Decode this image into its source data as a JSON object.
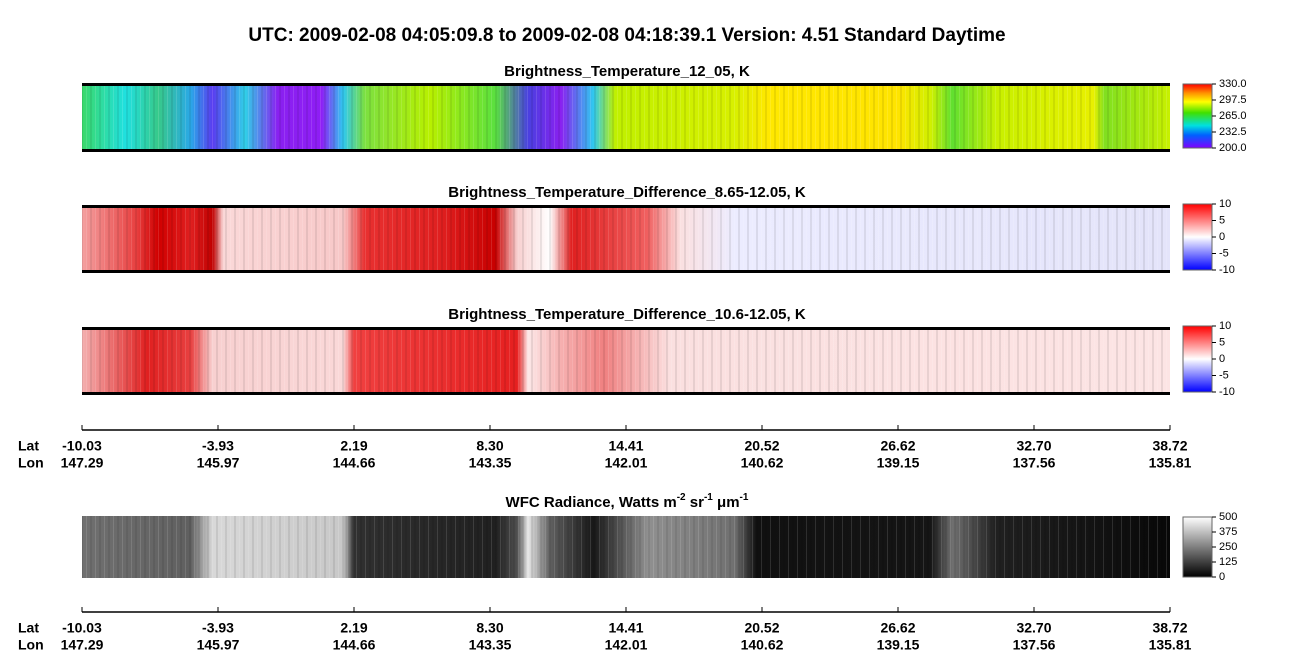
{
  "header": {
    "title": "UTC:  2009-02-08   04:05:09.8  to  2009-02-08   04:18:39.1    Version: 4.51  Standard Daytime"
  },
  "panels": [
    {
      "title": "Brightness_Temperature_12_05, K",
      "colorbar": [
        "330.0",
        "297.5",
        "265.0",
        "232.5",
        "200.0"
      ]
    },
    {
      "title": "Brightness_Temperature_Difference_8.65-12.05, K",
      "colorbar": [
        "10",
        "5",
        "0",
        "-5",
        "-10"
      ]
    },
    {
      "title": "Brightness_Temperature_Difference_10.6-12.05, K",
      "colorbar": [
        "10",
        "5",
        "0",
        "-5",
        "-10"
      ]
    },
    {
      "title_parts": [
        "WFC Radiance, Watts m",
        "-2",
        " sr",
        "-1",
        " μm",
        "-1"
      ],
      "colorbar": [
        "500",
        "375",
        "250",
        "125",
        "0"
      ]
    }
  ],
  "axes": [
    {
      "lat_label": "Lat",
      "lon_label": "Lon",
      "lat": [
        "-10.03",
        "-3.93",
        "2.19",
        "8.30",
        "14.41",
        "20.52",
        "26.62",
        "32.70",
        "38.72"
      ],
      "lon": [
        "147.29",
        "145.97",
        "144.66",
        "143.35",
        "142.01",
        "140.62",
        "139.15",
        "137.56",
        "135.81"
      ]
    },
    {
      "lat_label": "Lat",
      "lon_label": "Lon",
      "lat": [
        "-10.03",
        "-3.93",
        "2.19",
        "8.30",
        "14.41",
        "20.52",
        "26.62",
        "32.70",
        "38.72"
      ],
      "lon": [
        "147.29",
        "145.97",
        "144.66",
        "143.35",
        "142.01",
        "140.62",
        "139.15",
        "137.56",
        "135.81"
      ]
    }
  ]
}
